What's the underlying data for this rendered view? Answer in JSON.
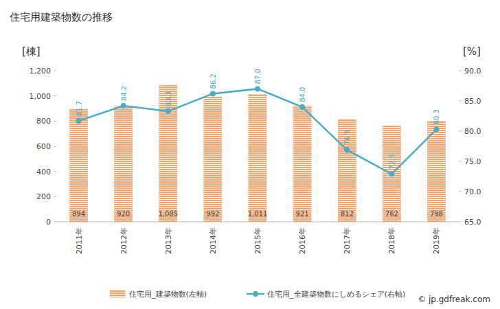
{
  "chart_data": {
    "type": "bar",
    "title": "住宅用建築物数の推移",
    "y_label": "[棟]",
    "y2_label": "[%]",
    "annotations": [
      "© jp.gdfreak.com"
    ],
    "categories": [
      "2011年",
      "2012年",
      "2013年",
      "2014年",
      "2015年",
      "2016年",
      "2017年",
      "2018年",
      "2019年"
    ],
    "series": [
      {
        "name": "住宅用_建築物数(左軸)",
        "type": "bar",
        "color": "#f4a46c",
        "values": [
          894,
          920,
          1085,
          992,
          1011,
          921,
          812,
          762,
          798
        ],
        "value_labels": [
          "894",
          "920",
          "1,085",
          "992",
          "1,011",
          "921",
          "812",
          "762",
          "798"
        ]
      },
      {
        "name": "住宅用_全建築物数にしめるシェア(右軸)",
        "type": "line",
        "axis": "y2",
        "color": "#4bacc6",
        "marker": "circle",
        "values": [
          81.7,
          84.2,
          83.3,
          86.2,
          87.0,
          84.0,
          76.9,
          72.9,
          80.3
        ],
        "value_labels": [
          "81.7",
          "84.2",
          "83.3",
          "86.2",
          "87.0",
          "84.0",
          "76.9",
          "72.9",
          "80.3"
        ]
      }
    ],
    "ylim": [
      0,
      1200
    ],
    "yticks": [
      0,
      200,
      400,
      600,
      800,
      {
        "value": 1000,
        "label": "1,000"
      },
      {
        "value": 1200,
        "label": "1,200"
      }
    ],
    "y2lim": [
      65,
      90
    ],
    "y2ticks": [
      {
        "value": 65,
        "label": "65.0"
      },
      {
        "value": 70,
        "label": "70.0"
      },
      {
        "value": 75,
        "label": "75.0"
      },
      {
        "value": 80,
        "label": "80.0"
      },
      {
        "value": 85,
        "label": "85.0"
      },
      {
        "value": 90,
        "label": "90.0"
      }
    ],
    "grid": false,
    "data_labels": true,
    "legend": "bottom"
  }
}
